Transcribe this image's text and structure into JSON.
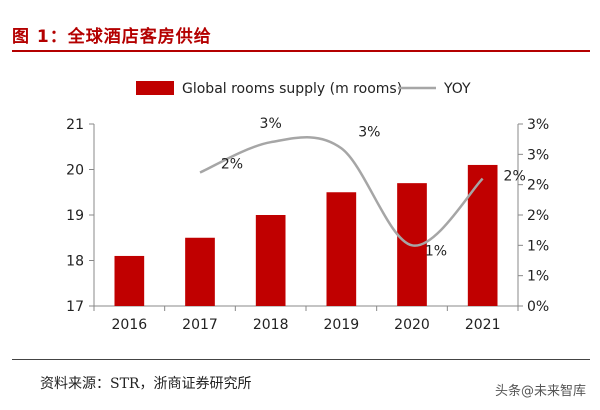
{
  "header": {
    "figure_title": "图 1：全球酒店客房供给"
  },
  "footer": {
    "source": "资料来源：STR，浙商证券研究所"
  },
  "watermark": "头条@未来智库",
  "chart_data": {
    "type": "bar",
    "categories": [
      "2016",
      "2017",
      "2018",
      "2019",
      "2020",
      "2021"
    ],
    "series": [
      {
        "name": "Global rooms supply (m rooms)",
        "type": "bar",
        "axis": "left",
        "color": "#c00000",
        "values": [
          18.1,
          18.5,
          19.0,
          19.5,
          19.7,
          20.1
        ]
      },
      {
        "name": "YOY",
        "type": "line",
        "axis": "right",
        "color": "#a6a6a6",
        "x": [
          "2017",
          "2018",
          "2019",
          "2020",
          "2021"
        ],
        "values": [
          2.2,
          2.7,
          2.6,
          1.0,
          2.1
        ],
        "labels": [
          "2%",
          "3%",
          "3%",
          "1%",
          "2%"
        ]
      }
    ],
    "y_left": {
      "lim": [
        17,
        21
      ],
      "ticks": [
        "17",
        "18",
        "19",
        "20",
        "21"
      ]
    },
    "y_right": {
      "lim": [
        0,
        3
      ],
      "ticks": [
        "0%",
        "1%",
        "1%",
        "2%",
        "2%",
        "3%",
        "3%"
      ]
    },
    "grid": false,
    "legend": "top"
  }
}
